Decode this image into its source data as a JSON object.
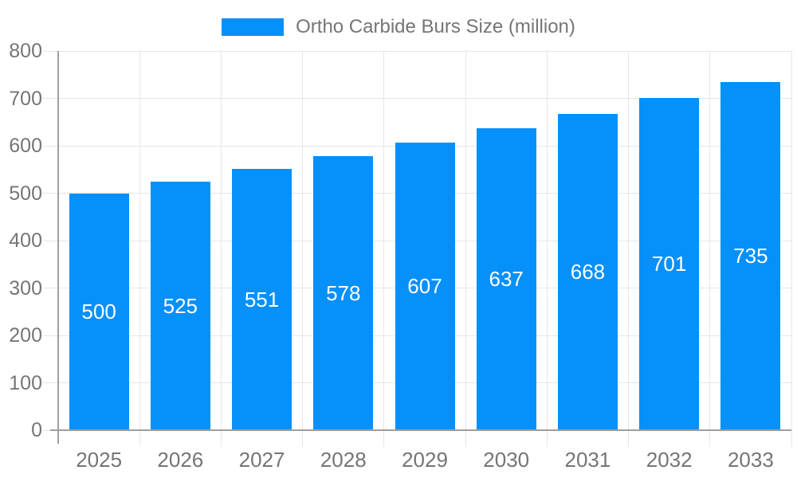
{
  "legend": {
    "label": "Ortho Carbide Burs Size (million)"
  },
  "chart_data": {
    "type": "bar",
    "title": "Ortho Carbide Burs Size (million)",
    "categories": [
      "2025",
      "2026",
      "2027",
      "2028",
      "2029",
      "2030",
      "2031",
      "2032",
      "2033"
    ],
    "values": [
      500,
      525,
      551,
      578,
      607,
      637,
      668,
      701,
      735
    ],
    "xlabel": "",
    "ylabel": "",
    "ylim": [
      0,
      800
    ],
    "yticks": [
      0,
      100,
      200,
      300,
      400,
      500,
      600,
      700,
      800
    ],
    "grid": true,
    "legend_position": "top",
    "value_labels": "inside-center",
    "colors": {
      "bar": "#0690FA",
      "value_label": "#FFFFFF",
      "gridline": "#E6E6E6",
      "axis_line": "#9E9E9E",
      "tick_label": "#757575",
      "legend_text": "#757575",
      "background": "#FFFFFF"
    }
  }
}
